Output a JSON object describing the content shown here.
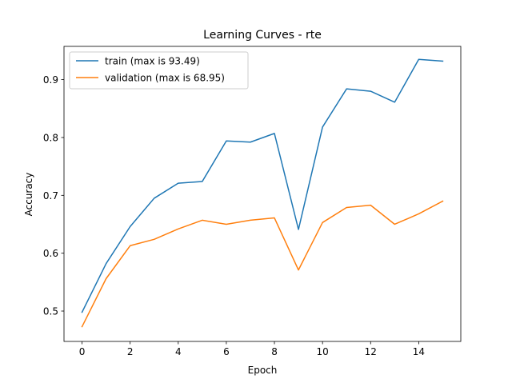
{
  "chart_data": {
    "type": "line",
    "title": "Learning Curves - rte",
    "xlabel": "Epoch",
    "ylabel": "Accuracy",
    "xlim": [
      -0.75,
      15.75
    ],
    "ylim": [
      0.4475,
      0.9575
    ],
    "xticks": [
      0,
      2,
      4,
      6,
      8,
      10,
      12,
      14
    ],
    "yticks": [
      0.5,
      0.6,
      0.7,
      0.8,
      0.9
    ],
    "ytick_labels": [
      "0.5",
      "0.6",
      "0.7",
      "0.8",
      "0.9"
    ],
    "grid": false,
    "legend_position": "top-left",
    "x": [
      0,
      1,
      2,
      3,
      4,
      5,
      6,
      7,
      8,
      9,
      10,
      11,
      12,
      13,
      14,
      15
    ],
    "series": [
      {
        "name": "train (max is 93.49)",
        "color": "#1f77b4",
        "values": [
          0.498,
          0.582,
          0.646,
          0.695,
          0.721,
          0.724,
          0.794,
          0.792,
          0.807,
          0.641,
          0.818,
          0.884,
          0.88,
          0.861,
          0.935,
          0.932
        ]
      },
      {
        "name": "validation (max is 68.95)",
        "color": "#ff7f0e",
        "values": [
          0.473,
          0.556,
          0.613,
          0.624,
          0.642,
          0.657,
          0.65,
          0.657,
          0.661,
          0.571,
          0.653,
          0.679,
          0.683,
          0.65,
          0.668,
          0.69
        ]
      }
    ]
  }
}
